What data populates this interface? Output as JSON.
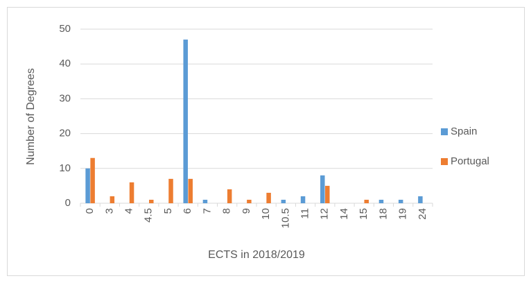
{
  "chart_data": {
    "type": "bar",
    "categories": [
      "0",
      "3",
      "4",
      "4.5",
      "5",
      "6",
      "7",
      "8",
      "9",
      "10",
      "10.5",
      "11",
      "12",
      "14",
      "15",
      "18",
      "19",
      "24"
    ],
    "series": [
      {
        "name": "Spain",
        "color": "#5b9bd5",
        "values": [
          10,
          0,
          0,
          0,
          0,
          47,
          1,
          0,
          0,
          0,
          1,
          2,
          8,
          0,
          0,
          1,
          1,
          2
        ]
      },
      {
        "name": "Portugal",
        "color": "#ed7d31",
        "values": [
          13,
          2,
          6,
          1,
          7,
          7,
          0,
          4,
          1,
          3,
          0,
          0,
          5,
          0,
          1,
          0,
          0,
          0
        ]
      }
    ],
    "x_label": "ECTS in 2018/2019",
    "y_label": "Number of Degrees",
    "ylim": [
      0,
      50
    ],
    "yticks": [
      0,
      10,
      20,
      30,
      40,
      50
    ],
    "grid": true,
    "legend": "right"
  }
}
